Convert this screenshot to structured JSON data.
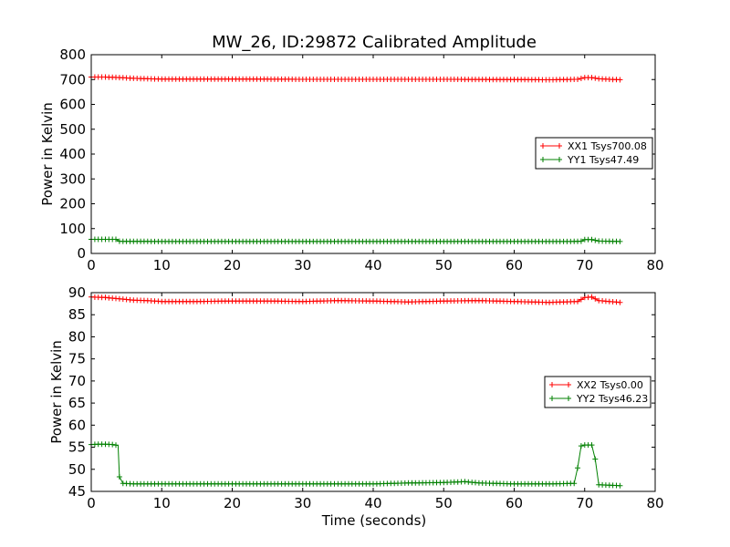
{
  "chart_data": [
    {
      "type": "line",
      "title": "MW_26, ID:29872 Calibrated Amplitude",
      "xlabel": "",
      "ylabel": "Power in Kelvin",
      "xlim": [
        0,
        80
      ],
      "ylim": [
        0,
        800
      ],
      "xticks": [
        "0",
        "10",
        "20",
        "30",
        "40",
        "50",
        "60",
        "70",
        "80"
      ],
      "yticks": [
        "0",
        "100",
        "200",
        "300",
        "400",
        "500",
        "600",
        "700",
        "800"
      ],
      "legend_position": "right",
      "grid": false,
      "series": [
        {
          "name": "XX1 Tsys700.08",
          "color": "#ff0000",
          "marker": "plus",
          "points": [
            [
              0,
              710
            ],
            [
              2,
              710
            ],
            [
              4,
              708
            ],
            [
              6,
              705
            ],
            [
              8,
              703
            ],
            [
              10,
              702
            ],
            [
              20,
              702
            ],
            [
              30,
              701
            ],
            [
              40,
              701
            ],
            [
              50,
              701
            ],
            [
              60,
              700
            ],
            [
              65,
              699
            ],
            [
              69,
              701
            ],
            [
              70,
              708
            ],
            [
              71,
              708
            ],
            [
              72,
              703
            ],
            [
              75,
              699
            ]
          ]
        },
        {
          "name": "YY1 Tsys47.49",
          "color": "#008000",
          "marker": "plus",
          "points": [
            [
              0,
              57
            ],
            [
              2,
              57
            ],
            [
              3.5,
              57
            ],
            [
              4,
              49
            ],
            [
              10,
              48
            ],
            [
              20,
              48
            ],
            [
              30,
              48
            ],
            [
              40,
              48
            ],
            [
              50,
              48
            ],
            [
              60,
              48
            ],
            [
              68,
              48
            ],
            [
              69.5,
              49
            ],
            [
              70,
              56
            ],
            [
              71,
              56
            ],
            [
              72,
              50
            ],
            [
              75,
              48
            ]
          ]
        }
      ]
    },
    {
      "type": "line",
      "title": "",
      "xlabel": "Time (seconds)",
      "ylabel": "Power in Kelvin",
      "xlim": [
        0,
        80
      ],
      "ylim": [
        45,
        90
      ],
      "xticks": [
        "0",
        "10",
        "20",
        "30",
        "40",
        "50",
        "60",
        "70",
        "80"
      ],
      "yticks": [
        "45",
        "50",
        "55",
        "60",
        "65",
        "70",
        "75",
        "80",
        "85",
        "90"
      ],
      "legend_position": "right",
      "grid": false,
      "series": [
        {
          "name": "XX2 Tsys0.00",
          "color": "#ff0000",
          "marker": "plus",
          "points": [
            [
              0,
              89
            ],
            [
              2,
              88.9
            ],
            [
              4,
              88.6
            ],
            [
              6,
              88.3
            ],
            [
              8,
              88.2
            ],
            [
              10,
              88.0
            ],
            [
              15,
              88.0
            ],
            [
              20,
              88.1
            ],
            [
              25,
              88.1
            ],
            [
              30,
              88.0
            ],
            [
              35,
              88.2
            ],
            [
              40,
              88.1
            ],
            [
              45,
              87.9
            ],
            [
              50,
              88.1
            ],
            [
              55,
              88.2
            ],
            [
              60,
              88.0
            ],
            [
              65,
              87.8
            ],
            [
              69,
              88.0
            ],
            [
              70,
              88.9
            ],
            [
              71,
              89.0
            ],
            [
              72,
              88.2
            ],
            [
              75,
              87.8
            ]
          ]
        },
        {
          "name": "YY2 Tsys46.23",
          "color": "#008000",
          "marker": "plus",
          "points": [
            [
              0,
              55.6
            ],
            [
              1,
              55.7
            ],
            [
              2,
              55.7
            ],
            [
              3,
              55.6
            ],
            [
              3.8,
              55.4
            ],
            [
              4,
              48.3
            ],
            [
              4.5,
              46.8
            ],
            [
              6,
              46.7
            ],
            [
              10,
              46.7
            ],
            [
              20,
              46.7
            ],
            [
              30,
              46.7
            ],
            [
              40,
              46.7
            ],
            [
              45,
              46.9
            ],
            [
              50,
              47.0
            ],
            [
              53,
              47.2
            ],
            [
              55,
              46.9
            ],
            [
              60,
              46.7
            ],
            [
              65,
              46.7
            ],
            [
              68.5,
              46.8
            ],
            [
              69,
              50.3
            ],
            [
              69.5,
              55.3
            ],
            [
              70,
              55.5
            ],
            [
              71,
              55.5
            ],
            [
              71.5,
              52.3
            ],
            [
              72,
              46.5
            ],
            [
              75,
              46.3
            ]
          ]
        }
      ]
    }
  ]
}
